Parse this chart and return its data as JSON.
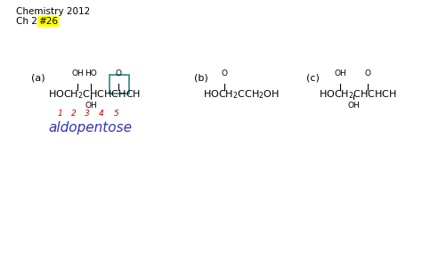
{
  "background_color": "#ffffff",
  "header_line1": "Chemistry 2012",
  "header_line2_pre": "Ch 23, ",
  "header_highlight_text": "#26",
  "header_highlight_color": "#ffff00",
  "header_text_color": "#000000",
  "section_a_label": "(a)",
  "section_b_label": "(b)",
  "section_c_label": "(c)",
  "section_a_box_color": "#3a9090",
  "answer_text": "aldopentose",
  "answer_color": "#3333bb",
  "font_size_header": 7.5,
  "font_size_formula": 8,
  "font_size_sub": 6.5,
  "font_size_label": 8,
  "font_size_answer": 11
}
